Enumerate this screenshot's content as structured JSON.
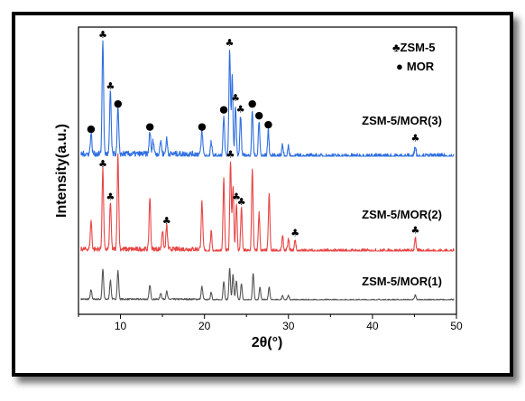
{
  "chart_data": {
    "type": "line",
    "xlabel": "2θ(°)",
    "ylabel": "Intensity(a.u.)",
    "xlim": [
      5,
      50
    ],
    "xticks": [
      "10",
      "20",
      "30",
      "40",
      "50"
    ],
    "legend": [
      {
        "symbol": "♣",
        "label": "ZSM-5"
      },
      {
        "symbol": "●",
        "label": "MOR"
      }
    ],
    "legend_position": "top-right",
    "series": [
      {
        "name": "ZSM-5/MOR(1)",
        "color": "#555555",
        "peaks": [
          [
            6.5,
            0.3
          ],
          [
            7.9,
            0.95
          ],
          [
            8.8,
            0.6
          ],
          [
            9.7,
            0.9
          ],
          [
            13.5,
            0.45
          ],
          [
            14.8,
            0.2
          ],
          [
            15.5,
            0.25
          ],
          [
            19.7,
            0.4
          ],
          [
            20.8,
            0.25
          ],
          [
            22.3,
            0.6
          ],
          [
            23.0,
            1.0
          ],
          [
            23.4,
            0.8
          ],
          [
            23.8,
            0.6
          ],
          [
            24.4,
            0.5
          ],
          [
            25.8,
            0.85
          ],
          [
            26.6,
            0.4
          ],
          [
            27.7,
            0.4
          ],
          [
            29.3,
            0.15
          ],
          [
            30.0,
            0.15
          ],
          [
            45.1,
            0.15
          ]
        ]
      },
      {
        "name": "ZSM-5/MOR(2)",
        "color": "#e84545",
        "peaks": [
          [
            6.5,
            0.3
          ],
          [
            7.9,
            0.85
          ],
          [
            8.8,
            0.5
          ],
          [
            9.7,
            1.0
          ],
          [
            13.5,
            0.55
          ],
          [
            15.0,
            0.2
          ],
          [
            15.5,
            0.25
          ],
          [
            19.7,
            0.5
          ],
          [
            20.8,
            0.2
          ],
          [
            22.3,
            0.75
          ],
          [
            23.1,
            0.95
          ],
          [
            23.4,
            0.7
          ],
          [
            23.8,
            0.5
          ],
          [
            24.4,
            0.45
          ],
          [
            25.7,
            0.85
          ],
          [
            26.5,
            0.4
          ],
          [
            27.7,
            0.6
          ],
          [
            29.3,
            0.15
          ],
          [
            30.0,
            0.12
          ],
          [
            30.8,
            0.12
          ],
          [
            45.1,
            0.15
          ]
        ]
      },
      {
        "name": "ZSM-5/MOR(3)",
        "color": "#2f6fe0",
        "peaks": [
          [
            6.5,
            0.18
          ],
          [
            7.9,
            1.0
          ],
          [
            8.8,
            0.55
          ],
          [
            9.7,
            0.4
          ],
          [
            13.5,
            0.2
          ],
          [
            13.9,
            0.12
          ],
          [
            14.8,
            0.12
          ],
          [
            15.5,
            0.13
          ],
          [
            19.7,
            0.2
          ],
          [
            20.8,
            0.12
          ],
          [
            22.3,
            0.35
          ],
          [
            23.0,
            0.93
          ],
          [
            23.3,
            0.7
          ],
          [
            23.7,
            0.45
          ],
          [
            24.3,
            0.35
          ],
          [
            25.7,
            0.4
          ],
          [
            26.5,
            0.3
          ],
          [
            27.6,
            0.22
          ],
          [
            29.3,
            0.1
          ],
          [
            30.0,
            0.08
          ],
          [
            45.1,
            0.1
          ]
        ]
      }
    ],
    "annotations": [
      {
        "series": 2,
        "symbol": "♣",
        "x": 7.9
      },
      {
        "series": 2,
        "symbol": "♣",
        "x": 8.8
      },
      {
        "series": 2,
        "symbol": "●",
        "x": 9.7
      },
      {
        "series": 2,
        "symbol": "●",
        "x": 6.5
      },
      {
        "series": 2,
        "symbol": "●",
        "x": 13.5
      },
      {
        "series": 2,
        "symbol": "●",
        "x": 19.7
      },
      {
        "series": 2,
        "symbol": "●",
        "x": 22.3
      },
      {
        "series": 2,
        "symbol": "♣",
        "x": 23.0
      },
      {
        "series": 2,
        "symbol": "♣",
        "x": 23.7
      },
      {
        "series": 2,
        "symbol": "♣",
        "x": 24.3
      },
      {
        "series": 2,
        "symbol": "●",
        "x": 25.7
      },
      {
        "series": 2,
        "symbol": "●",
        "x": 26.5
      },
      {
        "series": 2,
        "symbol": "●",
        "x": 27.6
      },
      {
        "series": 2,
        "symbol": "♣",
        "x": 45.1
      },
      {
        "series": 1,
        "symbol": "♣",
        "x": 7.9
      },
      {
        "series": 1,
        "symbol": "♣",
        "x": 8.8
      },
      {
        "series": 1,
        "symbol": "♣",
        "x": 15.5
      },
      {
        "series": 1,
        "symbol": "♣",
        "x": 23.1
      },
      {
        "series": 1,
        "symbol": "♣",
        "x": 23.8
      },
      {
        "series": 1,
        "symbol": "♣",
        "x": 24.4
      },
      {
        "series": 1,
        "symbol": "♣",
        "x": 30.8
      },
      {
        "series": 1,
        "symbol": "♣",
        "x": 45.1
      }
    ]
  }
}
